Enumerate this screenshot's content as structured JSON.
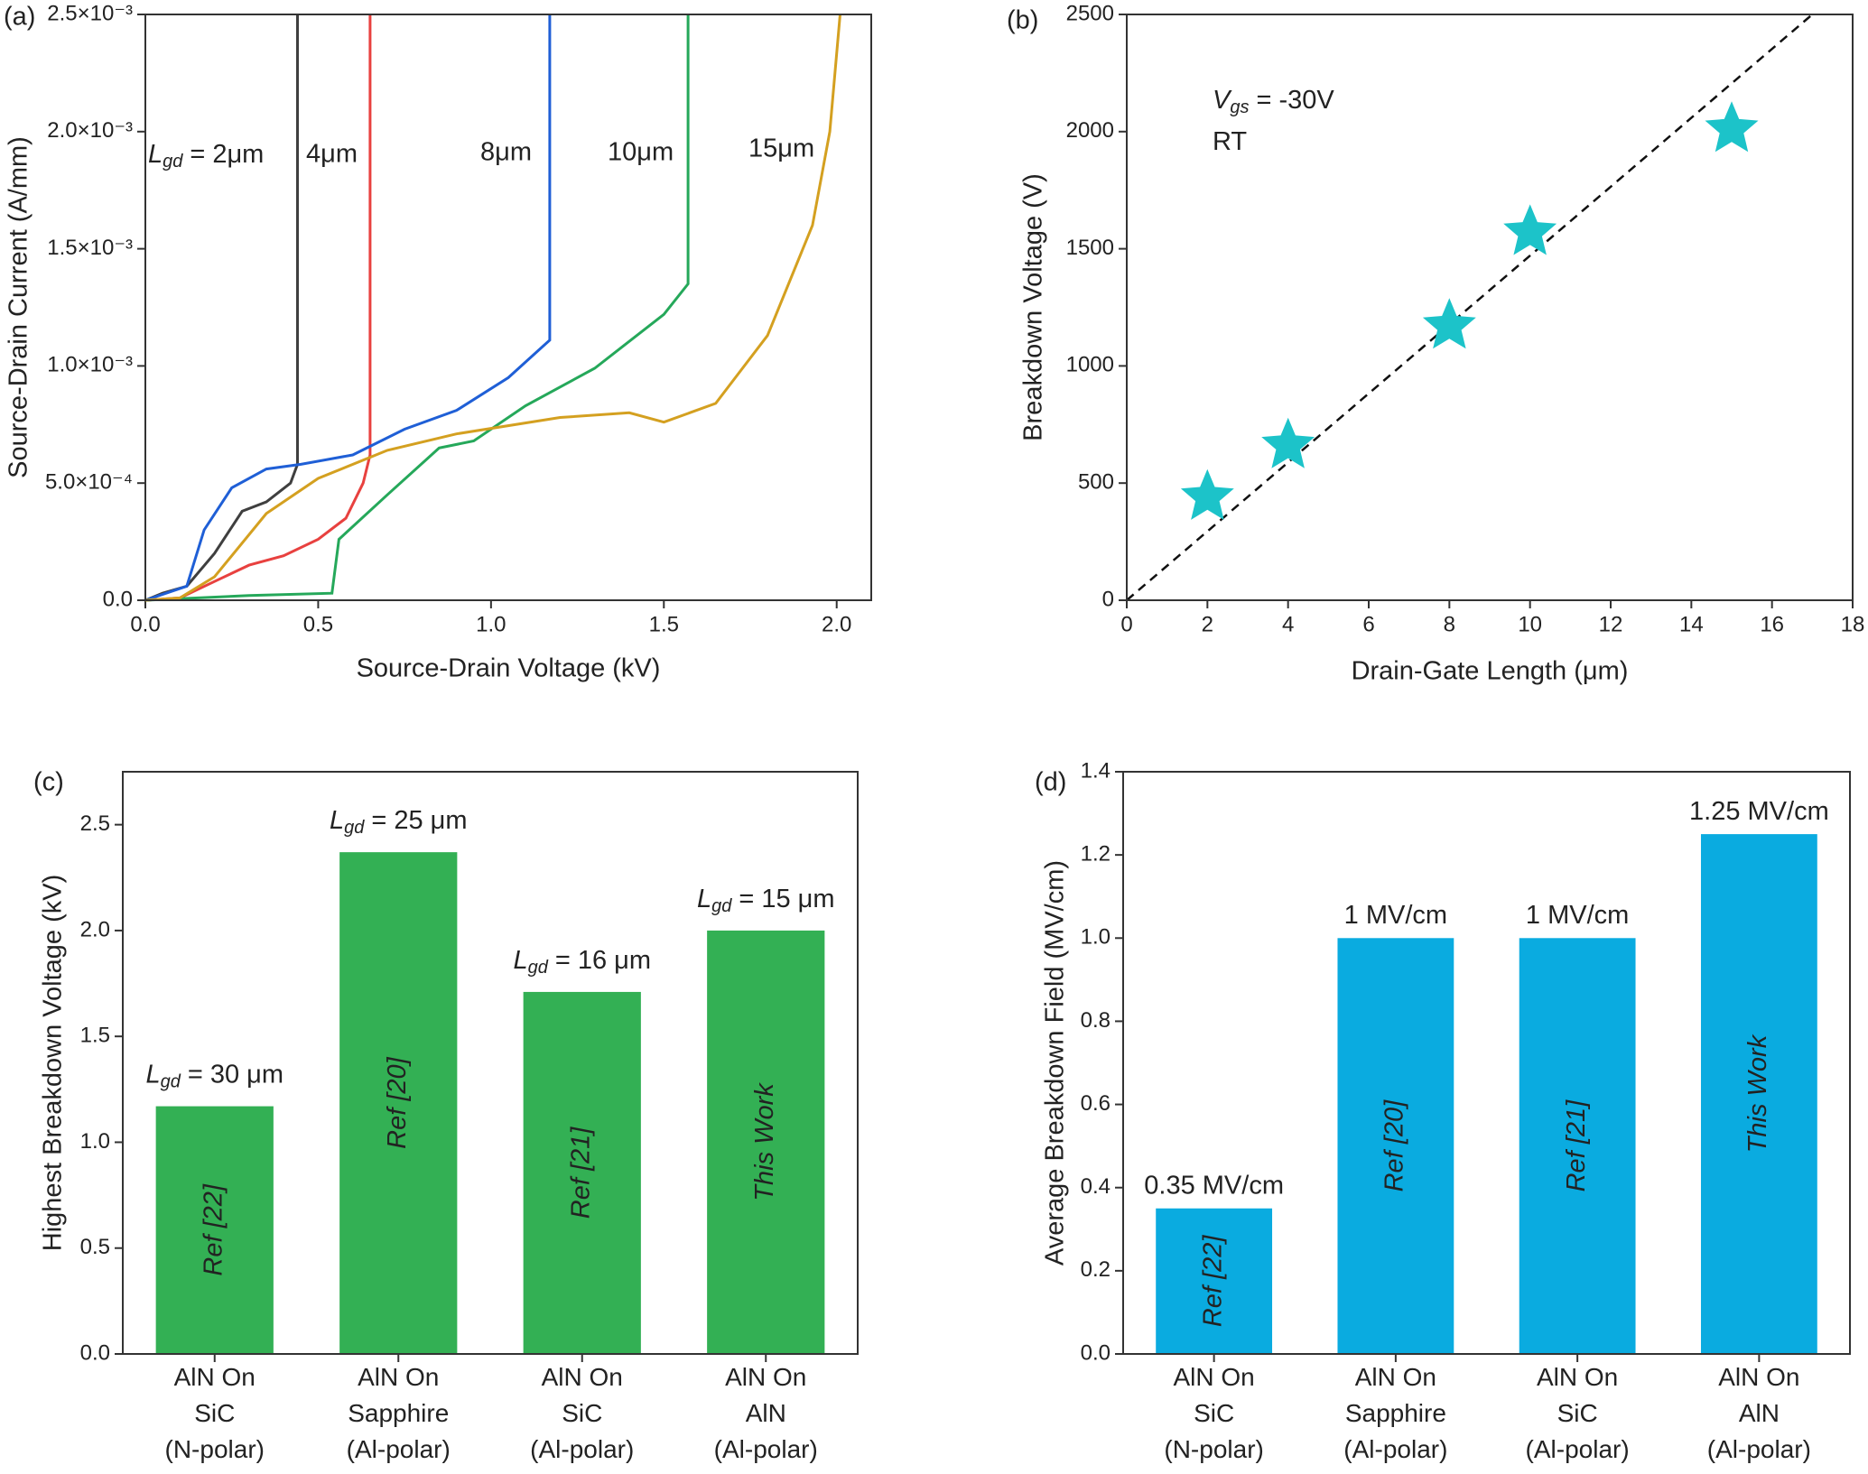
{
  "chart_data": [
    {
      "type": "line",
      "panel_label": "(a)",
      "xlabel": "Source-Drain Voltage (kV)",
      "ylabel": "Source-Drain Current (A/mm)",
      "xlim": [
        0,
        2.1
      ],
      "xticks": [
        {
          "value": 0,
          "label": "0.0"
        },
        0.5,
        {
          "value": 1,
          "label": "1.0"
        },
        1.5,
        {
          "value": 2,
          "label": "2.0"
        }
      ],
      "ylim": [
        0,
        0.0025
      ],
      "yticks": [
        {
          "value": 0,
          "label": "0.0"
        },
        {
          "value": 0.0005,
          "label": "5.0×10⁻⁴"
        },
        {
          "value": 0.001,
          "label": "1.0×10⁻³"
        },
        {
          "value": 0.0015,
          "label": "1.5×10⁻³"
        },
        {
          "value": 0.002,
          "label": "2.0×10⁻³"
        },
        {
          "value": 0.0025,
          "label": "2.5×10⁻³"
        }
      ],
      "label_prefix": {
        "main": "L",
        "sub": "gd",
        "rest": "="
      },
      "series": [
        {
          "name": "2μm",
          "color": "#3f3f3f",
          "x": [
            0,
            0.05,
            0.12,
            0.2,
            0.28,
            0.35,
            0.42,
            0.44,
            0.44
          ],
          "values": [
            0,
            3e-05,
            6e-05,
            0.0002,
            0.00038,
            0.00042,
            0.0005,
            0.00058,
            0.0025
          ]
        },
        {
          "name": "4μm",
          "color": "#e8413f",
          "x": [
            0,
            0.1,
            0.2,
            0.3,
            0.4,
            0.5,
            0.58,
            0.63,
            0.65,
            0.65
          ],
          "values": [
            0,
            1e-05,
            8e-05,
            0.00015,
            0.00019,
            0.00026,
            0.00035,
            0.0005,
            0.00062,
            0.0025
          ]
        },
        {
          "name": "8μm",
          "color": "#1f5fd6",
          "x": [
            0,
            0.12,
            0.17,
            0.25,
            0.35,
            0.45,
            0.6,
            0.75,
            0.9,
            1.05,
            1.17,
            1.17
          ],
          "values": [
            0,
            6e-05,
            0.0003,
            0.00048,
            0.00056,
            0.00058,
            0.00062,
            0.00073,
            0.00081,
            0.00095,
            0.00111,
            0.0025
          ]
        },
        {
          "name": "10μm",
          "color": "#25a85a",
          "x": [
            0,
            0.3,
            0.54,
            0.56,
            0.7,
            0.85,
            0.95,
            1.1,
            1.3,
            1.5,
            1.57,
            1.57
          ],
          "values": [
            0,
            2e-05,
            3e-05,
            0.00026,
            0.00045,
            0.00065,
            0.00068,
            0.00083,
            0.00099,
            0.00122,
            0.00135,
            0.0025
          ]
        },
        {
          "name": "15μm",
          "color": "#d4a020",
          "x": [
            0,
            0.1,
            0.2,
            0.35,
            0.5,
            0.7,
            0.9,
            1.2,
            1.4,
            1.5,
            1.65,
            1.8,
            1.93,
            1.98,
            2.01
          ],
          "values": [
            0,
            1e-05,
            0.0001,
            0.00037,
            0.00052,
            0.00064,
            0.00071,
            0.00078,
            0.0008,
            0.00076,
            0.00084,
            0.00113,
            0.0016,
            0.002,
            0.0025
          ]
        }
      ]
    },
    {
      "type": "scatter",
      "panel_label": "(b)",
      "xlabel": "Drain-Gate Length (μm)",
      "ylabel": "Breakdown Voltage (V)",
      "xlim": [
        0,
        18
      ],
      "xticks": [
        0,
        2,
        4,
        6,
        8,
        10,
        12,
        14,
        16,
        18
      ],
      "ylim": [
        0,
        2500
      ],
      "yticks": [
        0,
        500,
        1000,
        1500,
        2000,
        2500
      ],
      "x": [
        2,
        4,
        8,
        10,
        15
      ],
      "values": [
        440,
        660,
        1170,
        1570,
        2010
      ],
      "color": "#1cc3c9",
      "fit_line": {
        "x": [
          0,
          17
        ],
        "values": [
          0,
          2500
        ]
      },
      "annotations": [
        {
          "main": "V",
          "sub": "gs",
          "rest": "= -30V"
        },
        {
          "rest": "RT"
        }
      ]
    },
    {
      "type": "bar",
      "panel_label": "(c)",
      "ylabel": "Highest Breakdown Voltage (kV)",
      "ylim": [
        0,
        2.75
      ],
      "yticks": [
        {
          "value": 0,
          "label": "0.0"
        },
        0.5,
        {
          "value": 1,
          "label": "1.0"
        },
        1.5,
        {
          "value": 2,
          "label": "2.0"
        },
        2.5
      ],
      "categories": [
        [
          "AlN On",
          "SiC",
          "(N-polar)"
        ],
        [
          "AlN On",
          "Sapphire",
          "(Al-polar)"
        ],
        [
          "AlN On",
          "SiC",
          "(Al-polar)"
        ],
        [
          "AlN On",
          "AlN",
          "(Al-polar)"
        ]
      ],
      "values": [
        1.17,
        2.37,
        1.71,
        2.0
      ],
      "color": "#33b054",
      "bar_text": [
        "Ref [22]",
        "Ref [20]",
        "Ref [21]",
        "This Work"
      ],
      "annotations": [
        {
          "main": "L",
          "sub": "gd",
          "rest": "= 30 μm"
        },
        {
          "main": "L",
          "sub": "gd",
          "rest": "= 25 μm"
        },
        {
          "main": "L",
          "sub": "gd",
          "rest": "= 16 μm"
        },
        {
          "main": "L",
          "sub": "gd",
          "rest": "= 15 μm"
        }
      ]
    },
    {
      "type": "bar",
      "panel_label": "(d)",
      "ylabel": "Average Breakdown Field (MV/cm)",
      "ylim": [
        0,
        1.4
      ],
      "yticks": [
        {
          "value": 0,
          "label": "0.0"
        },
        0.2,
        0.4,
        0.6,
        0.8,
        {
          "value": 1,
          "label": "1.0"
        },
        1.2,
        1.4
      ],
      "categories": [
        [
          "AlN On",
          "SiC",
          "(N-polar)"
        ],
        [
          "AlN On",
          "Sapphire",
          "(Al-polar)"
        ],
        [
          "AlN On",
          "SiC",
          "(Al-polar)"
        ],
        [
          "AlN On",
          "AlN",
          "(Al-polar)"
        ]
      ],
      "values": [
        0.35,
        1,
        1,
        1.25
      ],
      "value_labels": [
        "0.35 MV/cm",
        "1 MV/cm",
        "1 MV/cm",
        "1.25 MV/cm"
      ],
      "color": "#0aabe0",
      "bar_text": [
        "Ref [22]",
        "Ref [20]",
        "Ref [21]",
        "This Work"
      ]
    }
  ]
}
